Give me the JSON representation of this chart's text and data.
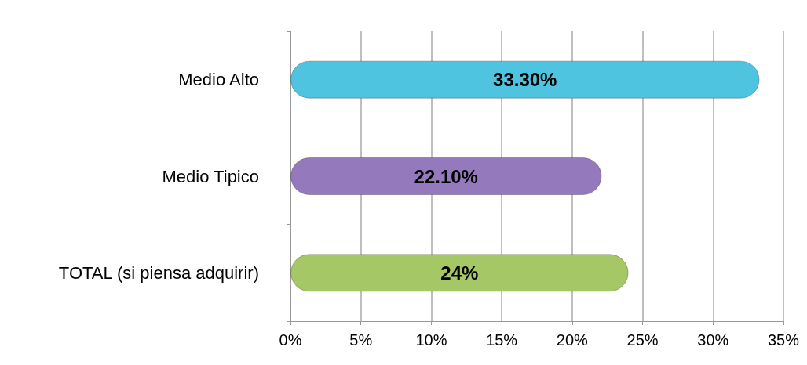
{
  "chart_data": {
    "type": "bar",
    "orientation": "horizontal",
    "categories": [
      "Medio Alto",
      "Medio Tipico",
      "TOTAL (si piensa adquirir)"
    ],
    "values": [
      33.3,
      22.1,
      24
    ],
    "colors": [
      "#4fc4e0",
      "#9479bd",
      "#a6c765"
    ],
    "value_labels": [
      "33.30%",
      "22.10%",
      "24%"
    ],
    "xlim": [
      0,
      35
    ],
    "xticks": [
      {
        "value": 0,
        "label": "0%"
      },
      {
        "value": 5,
        "label": "5%"
      },
      {
        "value": 10,
        "label": "10%"
      },
      {
        "value": 15,
        "label": "15%"
      },
      {
        "value": 20,
        "label": "20%"
      },
      {
        "value": 25,
        "label": "25%"
      },
      {
        "value": 30,
        "label": "30%"
      },
      {
        "value": 35,
        "label": "35%"
      }
    ],
    "grid": "x"
  }
}
